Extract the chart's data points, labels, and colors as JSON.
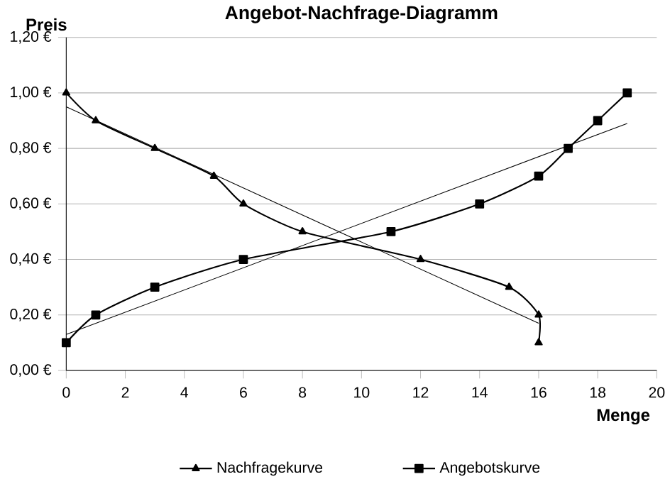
{
  "chart_data": {
    "type": "line",
    "title": "Angebot-Nachfrage-Diagramm",
    "xlabel": "Menge",
    "ylabel": "Preis",
    "xlim": [
      0,
      20
    ],
    "xticks": [
      0,
      2,
      4,
      6,
      8,
      10,
      12,
      14,
      16,
      18,
      20
    ],
    "ylim": [
      0,
      1.2
    ],
    "yticks": [
      {
        "value": 0,
        "label": "0,00 €"
      },
      {
        "value": 0.2,
        "label": "0,20 €"
      },
      {
        "value": 0.4,
        "label": "0,40 €"
      },
      {
        "value": 0.6,
        "label": "0,60 €"
      },
      {
        "value": 0.8,
        "label": "0,80 €"
      },
      {
        "value": 1.0,
        "label": "1,00 €"
      },
      {
        "value": 1.2,
        "label": "1,20 €"
      }
    ],
    "grid": "y",
    "legend": "bottom",
    "series": [
      {
        "name": "Nachfragekurve",
        "color": "#000000",
        "marker": "triangle",
        "x": [
          0,
          1,
          3,
          5,
          6,
          8,
          12,
          15,
          16,
          16
        ],
        "values": [
          1.0,
          0.9,
          0.8,
          0.7,
          0.6,
          0.5,
          0.4,
          0.3,
          0.2,
          0.1
        ]
      },
      {
        "name": "Angebotskurve",
        "color": "#000000",
        "marker": "square",
        "x": [
          0,
          1,
          3,
          6,
          11,
          14,
          16,
          17,
          18,
          19
        ],
        "values": [
          0.1,
          0.2,
          0.3,
          0.4,
          0.5,
          0.6,
          0.7,
          0.8,
          0.9,
          1.0
        ]
      },
      {
        "color": "#000000",
        "marker": "none",
        "x": [
          0,
          16
        ],
        "values": [
          0.95,
          0.17
        ]
      },
      {
        "color": "#000000",
        "marker": "none",
        "x": [
          0,
          19
        ],
        "values": [
          0.13,
          0.89
        ]
      }
    ]
  }
}
